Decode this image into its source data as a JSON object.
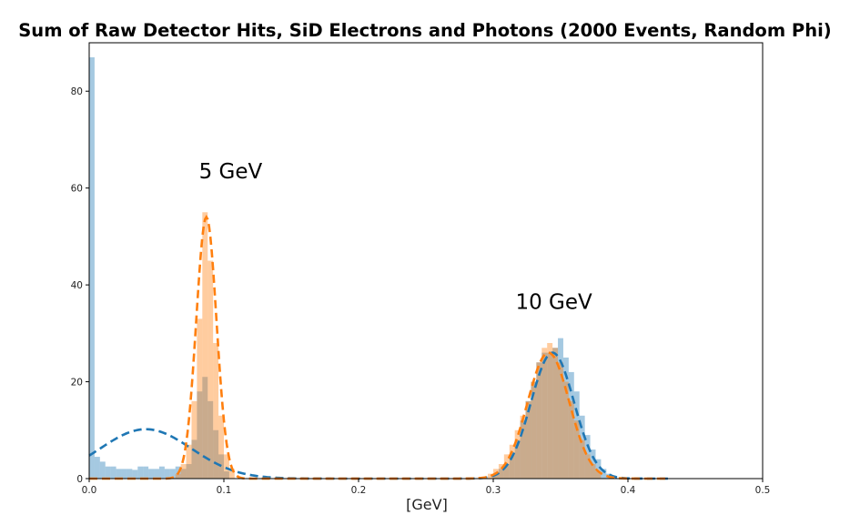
{
  "chart_data": {
    "type": "histogram",
    "title": "Sum of Raw Detector Hits, SiD Electrons and Photons (2000 Events, Random Phi)",
    "xlabel": "[GeV]",
    "ylabel": "",
    "xlim": [
      0.0,
      0.5
    ],
    "ylim": [
      0,
      90
    ],
    "xticks": [
      0.0,
      0.1,
      0.2,
      0.3,
      0.4,
      0.5
    ],
    "xtick_labels": [
      "0.0",
      "0.1",
      "0.2",
      "0.3",
      "0.4",
      "0.5"
    ],
    "yticks": [
      0,
      20,
      40,
      60,
      80
    ],
    "ytick_labels": [
      "0",
      "20",
      "40",
      "60",
      "80"
    ],
    "grid": false,
    "bin_width": 0.004,
    "series": [
      {
        "name": "blue-histogram",
        "color": "#1f77b4",
        "alpha": 0.4,
        "bins": [
          [
            0.0,
            87
          ],
          [
            0.004,
            4.5
          ],
          [
            0.008,
            3.5
          ],
          [
            0.012,
            2.5
          ],
          [
            0.016,
            2.5
          ],
          [
            0.02,
            2
          ],
          [
            0.024,
            2
          ],
          [
            0.028,
            2
          ],
          [
            0.032,
            1.8
          ],
          [
            0.036,
            2.5
          ],
          [
            0.04,
            2.5
          ],
          [
            0.044,
            2
          ],
          [
            0.048,
            2
          ],
          [
            0.052,
            2.5
          ],
          [
            0.056,
            2
          ],
          [
            0.06,
            2
          ],
          [
            0.064,
            2.5
          ],
          [
            0.068,
            2
          ],
          [
            0.072,
            3
          ],
          [
            0.076,
            8
          ],
          [
            0.08,
            18
          ],
          [
            0.084,
            21
          ],
          [
            0.088,
            16
          ],
          [
            0.092,
            10
          ],
          [
            0.096,
            5
          ],
          [
            0.1,
            1.5
          ],
          [
            0.3,
            1
          ],
          [
            0.304,
            2
          ],
          [
            0.308,
            3
          ],
          [
            0.312,
            5
          ],
          [
            0.316,
            8
          ],
          [
            0.32,
            12
          ],
          [
            0.324,
            16
          ],
          [
            0.328,
            20
          ],
          [
            0.332,
            24
          ],
          [
            0.336,
            26
          ],
          [
            0.34,
            26
          ],
          [
            0.344,
            27
          ],
          [
            0.348,
            29
          ],
          [
            0.352,
            25
          ],
          [
            0.356,
            22
          ],
          [
            0.36,
            18
          ],
          [
            0.364,
            13
          ],
          [
            0.368,
            9
          ],
          [
            0.372,
            6
          ],
          [
            0.376,
            4
          ],
          [
            0.38,
            2
          ],
          [
            0.384,
            1
          ]
        ]
      },
      {
        "name": "orange-histogram",
        "color": "#ff7f0e",
        "alpha": 0.4,
        "bins": [
          [
            0.064,
            1
          ],
          [
            0.068,
            3
          ],
          [
            0.072,
            7
          ],
          [
            0.076,
            16
          ],
          [
            0.08,
            33
          ],
          [
            0.084,
            55
          ],
          [
            0.088,
            45
          ],
          [
            0.092,
            28
          ],
          [
            0.096,
            13
          ],
          [
            0.1,
            5
          ],
          [
            0.104,
            2
          ],
          [
            0.296,
            1
          ],
          [
            0.3,
            2
          ],
          [
            0.304,
            3
          ],
          [
            0.308,
            5
          ],
          [
            0.312,
            7
          ],
          [
            0.316,
            10
          ],
          [
            0.32,
            13
          ],
          [
            0.324,
            16
          ],
          [
            0.328,
            20
          ],
          [
            0.332,
            24
          ],
          [
            0.336,
            27
          ],
          [
            0.34,
            28
          ],
          [
            0.344,
            27
          ],
          [
            0.348,
            24
          ],
          [
            0.352,
            20
          ],
          [
            0.356,
            16
          ],
          [
            0.36,
            12
          ],
          [
            0.364,
            8
          ],
          [
            0.368,
            5
          ],
          [
            0.372,
            3
          ],
          [
            0.376,
            1.5
          ]
        ]
      }
    ],
    "fits": [
      {
        "name": "blue-fit",
        "color": "#1f77b4",
        "style": "dashed",
        "x_range": [
          0.0,
          0.43
        ],
        "gaussians": [
          {
            "amplitude": 10.2,
            "mean": 0.042,
            "sigma": 0.034
          },
          {
            "amplitude": 26.0,
            "mean": 0.344,
            "sigma": 0.016
          }
        ]
      },
      {
        "name": "orange-fit",
        "color": "#ff7f0e",
        "style": "dashed",
        "x_range": [
          0.0,
          0.43
        ],
        "gaussians": [
          {
            "amplitude": 54.0,
            "mean": 0.087,
            "sigma": 0.0075
          },
          {
            "amplitude": 26.0,
            "mean": 0.341,
            "sigma": 0.0155
          }
        ]
      }
    ],
    "annotations": [
      {
        "text": "5 GeV",
        "x": 0.105,
        "y": 62
      },
      {
        "text": "10 GeV",
        "x": 0.345,
        "y": 35
      }
    ]
  }
}
